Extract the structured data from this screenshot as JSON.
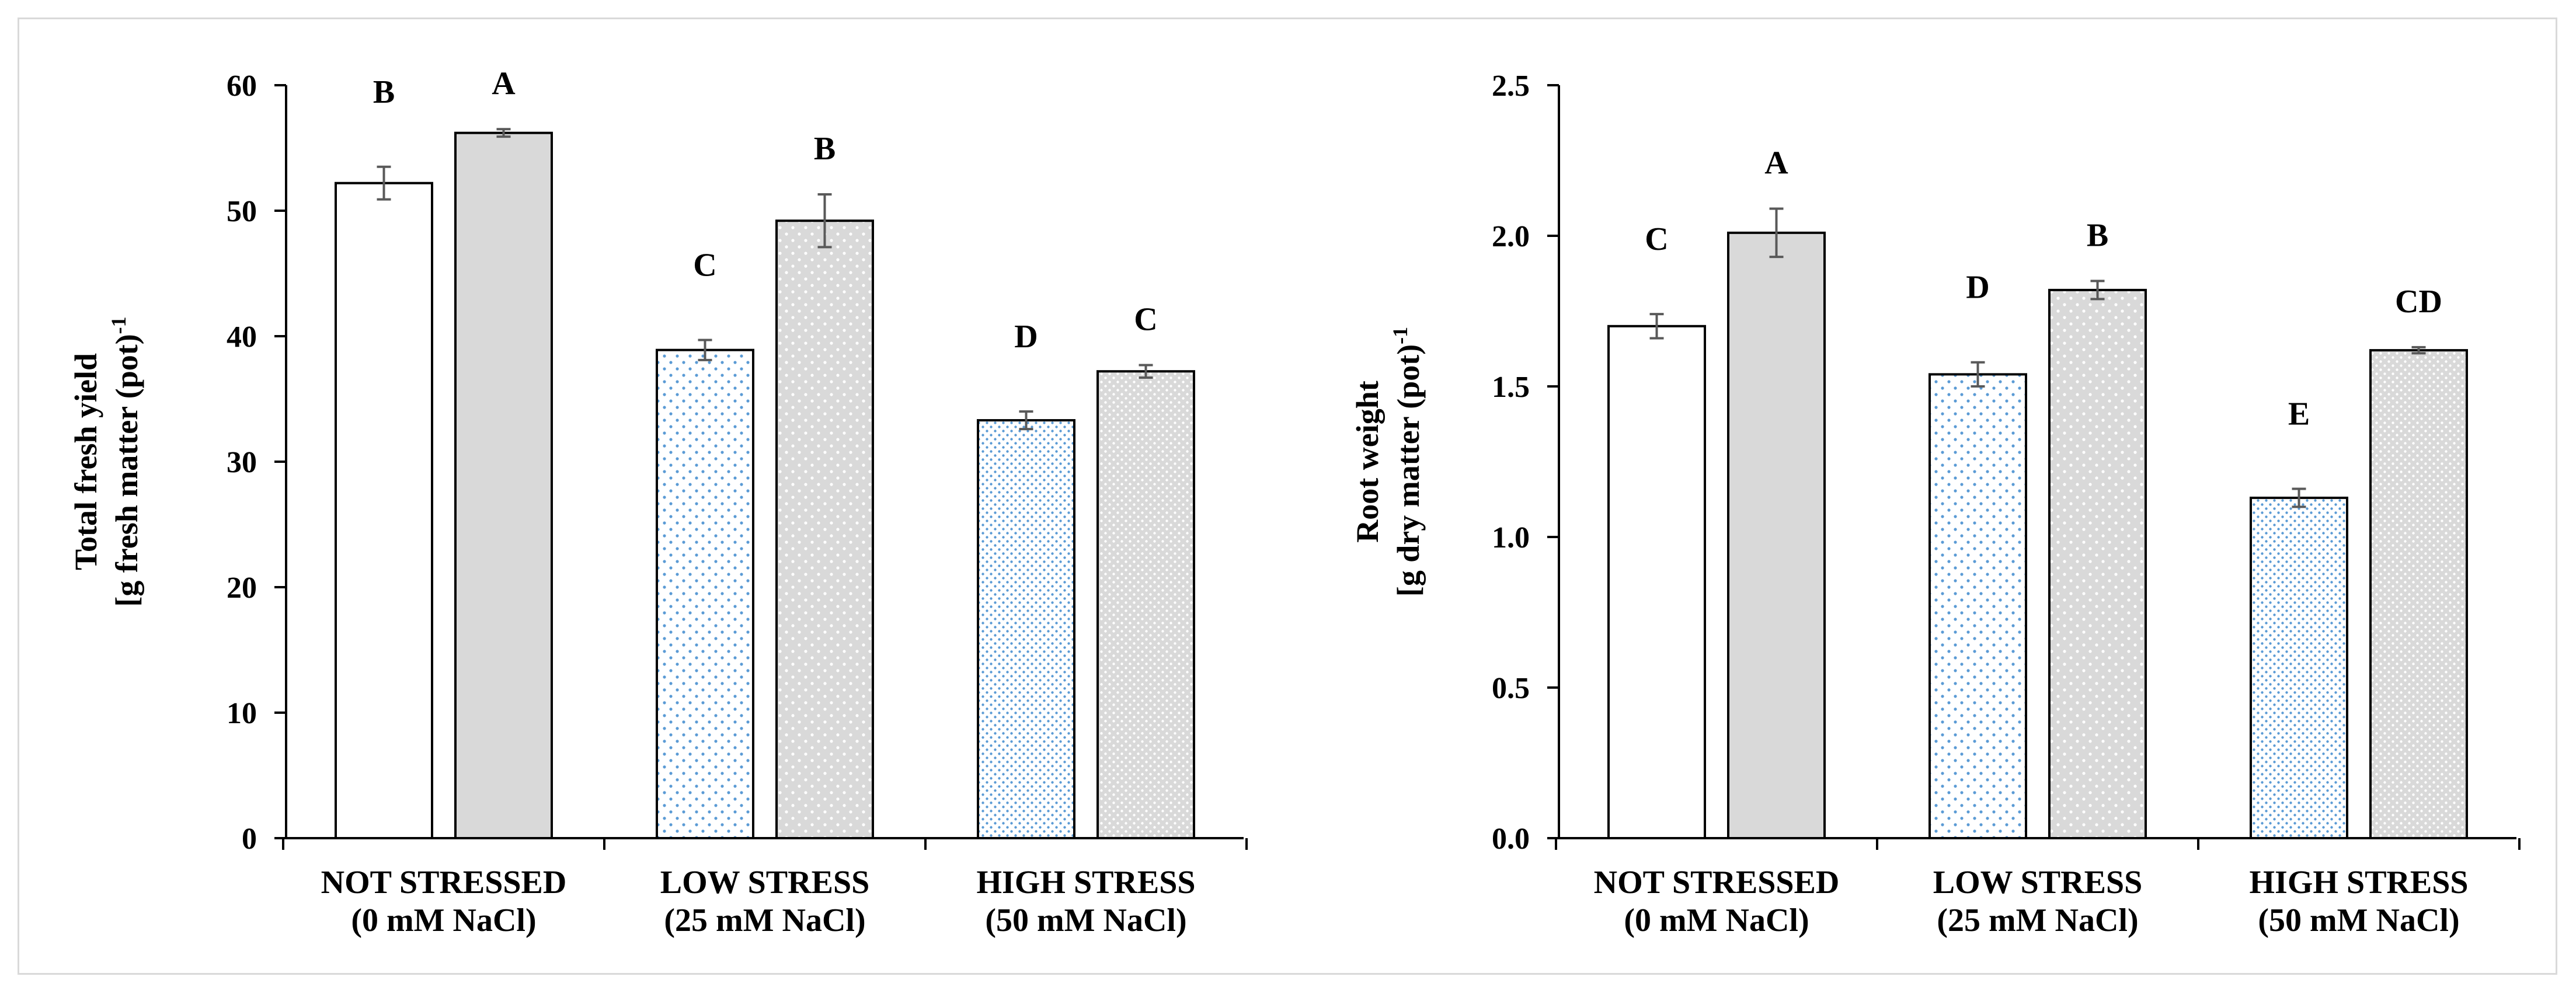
{
  "colors": {
    "control_fill": "#ffffff",
    "treated_fill": "#d9d9d9",
    "dot_blue": "#5b9bd5",
    "dot_white": "#ffffff",
    "bar_stroke": "#000000",
    "error_bar": "#595959",
    "frame": "#d9d9d9"
  },
  "chart_data": [
    {
      "type": "bar",
      "ylabel_lines": [
        "Total fresh yield",
        "[g fresh matter (pot)",
        "-1"
      ],
      "ylim": [
        0,
        60
      ],
      "yticks": [
        "0",
        "10",
        "20",
        "30",
        "40",
        "50",
        "60"
      ],
      "ytick_values": [
        0,
        10,
        20,
        30,
        40,
        50,
        60
      ],
      "categories": [
        {
          "line1": "NOT STRESSED",
          "line2": "(0 mM NaCl)"
        },
        {
          "line1": "LOW STRESS",
          "line2": "(25 mM NaCl)"
        },
        {
          "line1": "HIGH STRESS",
          "line2": "(50 mM NaCl)"
        }
      ],
      "series": [
        {
          "values": [
            52.2,
            38.9,
            33.3
          ],
          "errors": [
            1.3,
            0.8,
            0.7
          ],
          "letters": [
            "B",
            "C",
            "D"
          ]
        },
        {
          "values": [
            56.2,
            49.2,
            37.2
          ],
          "errors": [
            0.3,
            2.1,
            0.5
          ],
          "letters": [
            "A",
            "B",
            "C"
          ]
        }
      ]
    },
    {
      "type": "bar",
      "ylabel_lines": [
        "Root weight",
        "[g dry matter (pot)",
        "-1"
      ],
      "ylim": [
        0,
        2.5
      ],
      "yticks": [
        "0.0",
        "0.5",
        "1.0",
        "1.5",
        "2.0",
        "2.5"
      ],
      "ytick_values": [
        0,
        0.5,
        1.0,
        1.5,
        2.0,
        2.5
      ],
      "categories": [
        {
          "line1": "NOT STRESSED",
          "line2": "(0 mM NaCl)"
        },
        {
          "line1": "LOW STRESS",
          "line2": "(25 mM NaCl)"
        },
        {
          "line1": "HIGH STRESS",
          "line2": "(50 mM NaCl)"
        }
      ],
      "series": [
        {
          "values": [
            1.7,
            1.54,
            1.13
          ],
          "errors": [
            0.04,
            0.04,
            0.03
          ],
          "letters": [
            "C",
            "D",
            "E"
          ]
        },
        {
          "values": [
            2.01,
            1.82,
            1.62
          ],
          "errors": [
            0.08,
            0.03,
            0.01
          ],
          "letters": [
            "A",
            "B",
            "CD"
          ]
        }
      ]
    }
  ]
}
